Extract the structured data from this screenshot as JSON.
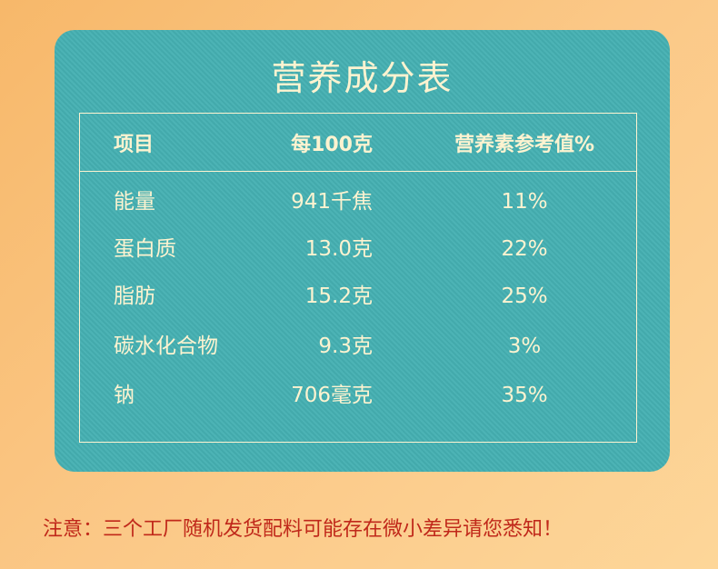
{
  "title": "营养成分表",
  "headers": [
    "项目",
    "每100克",
    "营养素参考值%"
  ],
  "rows": [
    {
      "item": "能量",
      "per100g": "941千焦",
      "nrv": "11%"
    },
    {
      "item": "蛋白质",
      "per100g": "13.0克",
      "nrv": "22%"
    },
    {
      "item": "脂肪",
      "per100g": "15.2克",
      "nrv": "25%"
    },
    {
      "item": "碳水化合物",
      "per100g": "9.3克",
      "nrv": "3%"
    },
    {
      "item": "钠",
      "per100g": "706毫克",
      "nrv": "35%"
    }
  ],
  "note": "注意：三个工厂随机发货配料可能存在微小差异请您悉知！",
  "colors": {
    "card": "#45b0b2",
    "text": "#fdf3d0",
    "note": "#c0281a"
  }
}
